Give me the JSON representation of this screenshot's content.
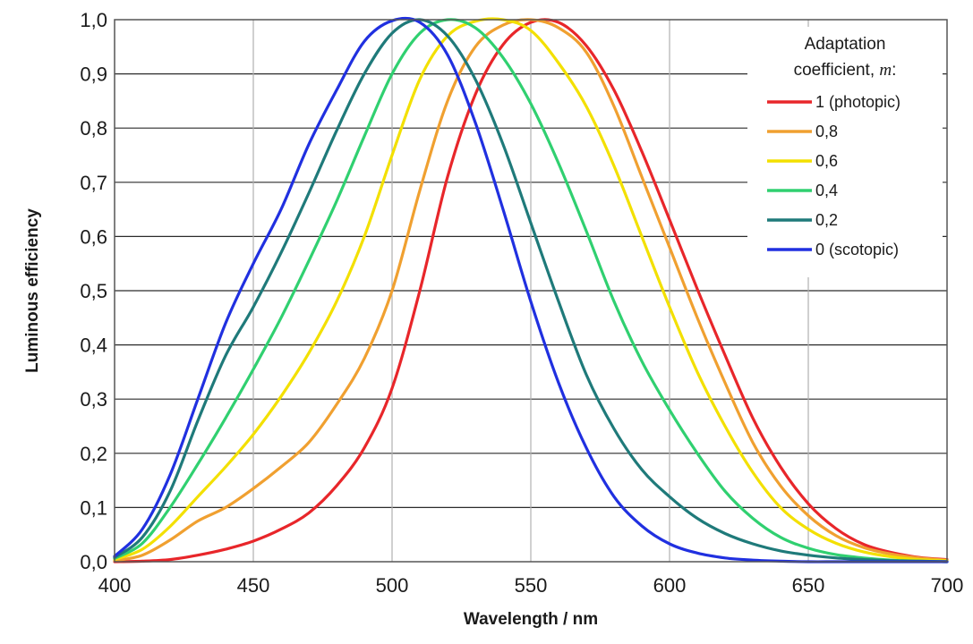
{
  "chart_data": {
    "type": "line",
    "xlabel": "Wavelength / nm",
    "ylabel": "Luminous efficiency",
    "xlim": [
      400,
      700
    ],
    "ylim": [
      0,
      1
    ],
    "x_ticks": [
      400,
      450,
      500,
      550,
      600,
      650,
      700
    ],
    "y_ticks": [
      "0,0",
      "0,1",
      "0,2",
      "0,3",
      "0,4",
      "0,5",
      "0,6",
      "0,7",
      "0,8",
      "0,9",
      "1,0"
    ],
    "grid": true,
    "legend": {
      "position": "top-right",
      "title_line1": "Adaptation",
      "title_line2": "coefficient,",
      "title_symbol": "m",
      "title_suffix": ":"
    },
    "x": [
      400,
      410,
      420,
      430,
      440,
      450,
      460,
      470,
      480,
      490,
      500,
      510,
      520,
      530,
      540,
      550,
      560,
      570,
      580,
      590,
      600,
      610,
      620,
      630,
      640,
      650,
      660,
      670,
      680,
      690,
      700
    ],
    "series": [
      {
        "name": "1 (photopic)",
        "color": "#e8262a",
        "values": [
          0.0,
          0.001,
          0.004,
          0.012,
          0.023,
          0.038,
          0.06,
          0.09,
          0.14,
          0.21,
          0.32,
          0.5,
          0.71,
          0.862,
          0.954,
          0.995,
          0.995,
          0.952,
          0.87,
          0.757,
          0.631,
          0.503,
          0.381,
          0.265,
          0.175,
          0.107,
          0.061,
          0.032,
          0.017,
          0.008,
          0.004
        ]
      },
      {
        "name": "0,8",
        "color": "#f0a030",
        "values": [
          0.002,
          0.012,
          0.04,
          0.075,
          0.1,
          0.135,
          0.175,
          0.22,
          0.29,
          0.375,
          0.5,
          0.685,
          0.85,
          0.95,
          0.99,
          1.0,
          0.985,
          0.94,
          0.84,
          0.71,
          0.58,
          0.45,
          0.33,
          0.22,
          0.14,
          0.085,
          0.048,
          0.026,
          0.014,
          0.007,
          0.003
        ]
      },
      {
        "name": "0,6",
        "color": "#f3e000",
        "values": [
          0.004,
          0.023,
          0.065,
          0.12,
          0.175,
          0.235,
          0.305,
          0.385,
          0.48,
          0.6,
          0.75,
          0.89,
          0.97,
          0.997,
          1.0,
          0.98,
          0.92,
          0.84,
          0.73,
          0.6,
          0.47,
          0.35,
          0.25,
          0.165,
          0.1,
          0.06,
          0.034,
          0.018,
          0.009,
          0.004,
          0.002
        ]
      },
      {
        "name": "0,4",
        "color": "#30d070",
        "values": [
          0.006,
          0.034,
          0.1,
          0.18,
          0.265,
          0.355,
          0.45,
          0.555,
          0.665,
          0.785,
          0.9,
          0.975,
          1.0,
          0.985,
          0.93,
          0.845,
          0.735,
          0.61,
          0.48,
          0.37,
          0.28,
          0.2,
          0.13,
          0.08,
          0.045,
          0.025,
          0.013,
          0.007,
          0.003,
          0.001,
          0.0
        ]
      },
      {
        "name": "0,2",
        "color": "#1f7a7a",
        "values": [
          0.008,
          0.045,
          0.13,
          0.26,
          0.38,
          0.47,
          0.57,
          0.68,
          0.795,
          0.9,
          0.975,
          1.0,
          0.97,
          0.89,
          0.77,
          0.625,
          0.48,
          0.345,
          0.245,
          0.17,
          0.12,
          0.08,
          0.052,
          0.033,
          0.02,
          0.012,
          0.007,
          0.004,
          0.002,
          0.001,
          0.0
        ]
      },
      {
        "name": "0 (scotopic)",
        "color": "#2030e0",
        "values": [
          0.01,
          0.06,
          0.16,
          0.3,
          0.44,
          0.55,
          0.65,
          0.77,
          0.87,
          0.96,
          0.998,
          0.995,
          0.935,
          0.81,
          0.65,
          0.48,
          0.33,
          0.21,
          0.12,
          0.066,
          0.033,
          0.016,
          0.007,
          0.003,
          0.001,
          0.0,
          0.0,
          0.0,
          0.0,
          0.0,
          0.0
        ]
      }
    ]
  }
}
